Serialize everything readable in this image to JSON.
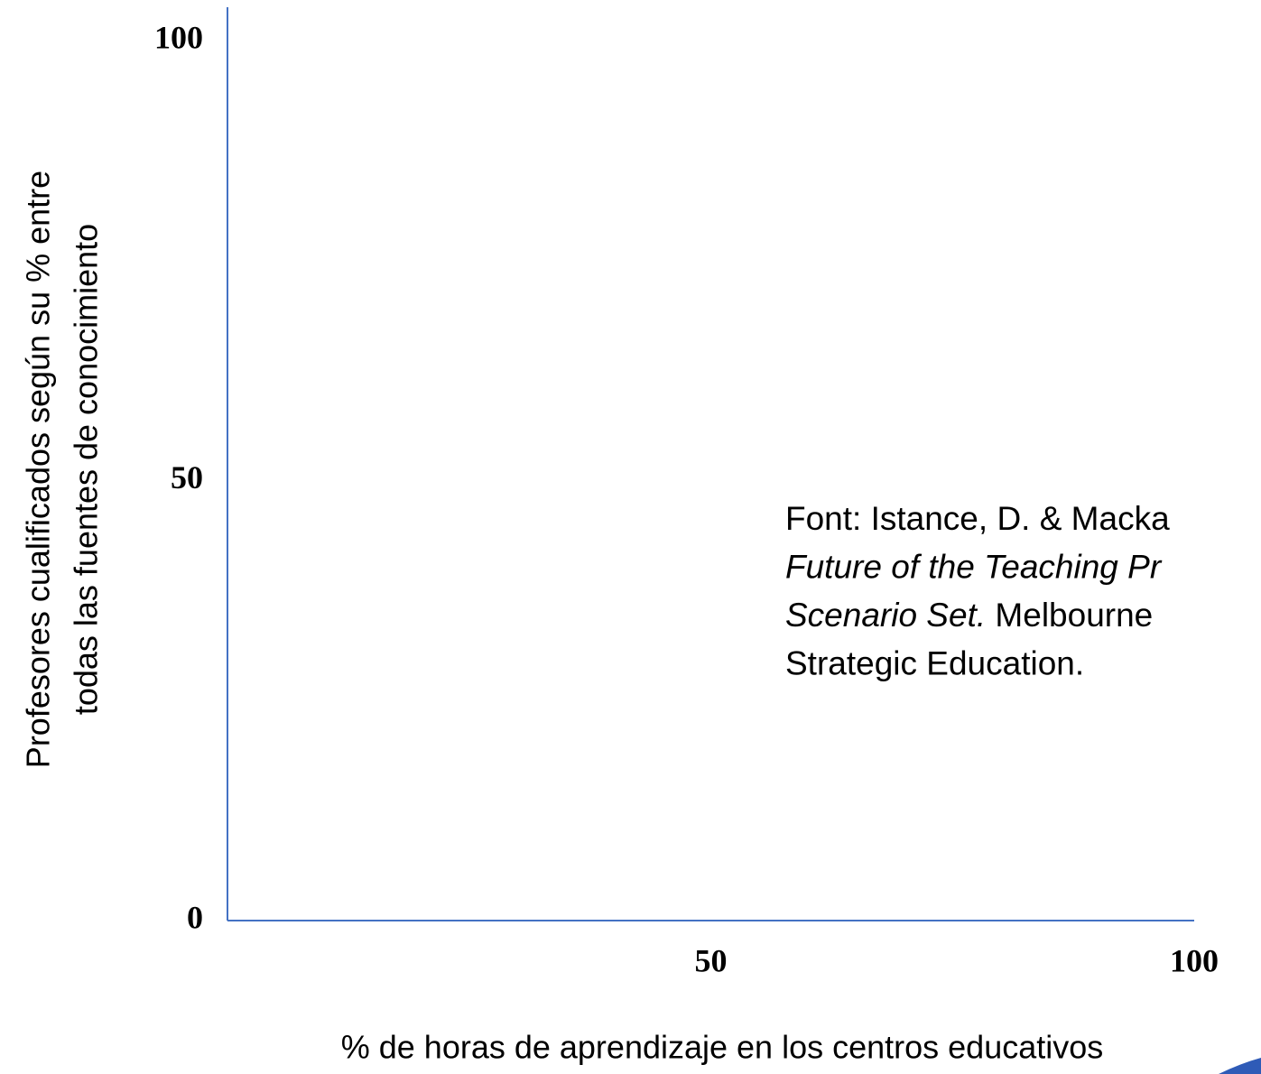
{
  "chart_data": {
    "type": "scatter",
    "x_label": "% de horas de aprendizaje en los centros educativos",
    "y_label": [
      "Profesores cualificados según su % entre",
      "todas las fuentes de conocimiento"
    ],
    "xlim": [
      0,
      100
    ],
    "ylim": [
      0,
      100
    ],
    "xticks": [
      50,
      100
    ],
    "yticks": [
      0,
      50,
      100
    ],
    "axis_color": "#4472c4",
    "annotation": [
      [
        {
          "text": "Font: Istance, D. & Macka",
          "italic": false
        }
      ],
      [
        {
          "text": "Future of the Teaching Pr",
          "italic": true
        }
      ],
      [
        {
          "text": "Scenario Set.",
          "italic": true
        },
        {
          "text": " Melbourne",
          "italic": false
        }
      ],
      [
        {
          "text": "Strategic Education.",
          "italic": false
        }
      ]
    ]
  }
}
